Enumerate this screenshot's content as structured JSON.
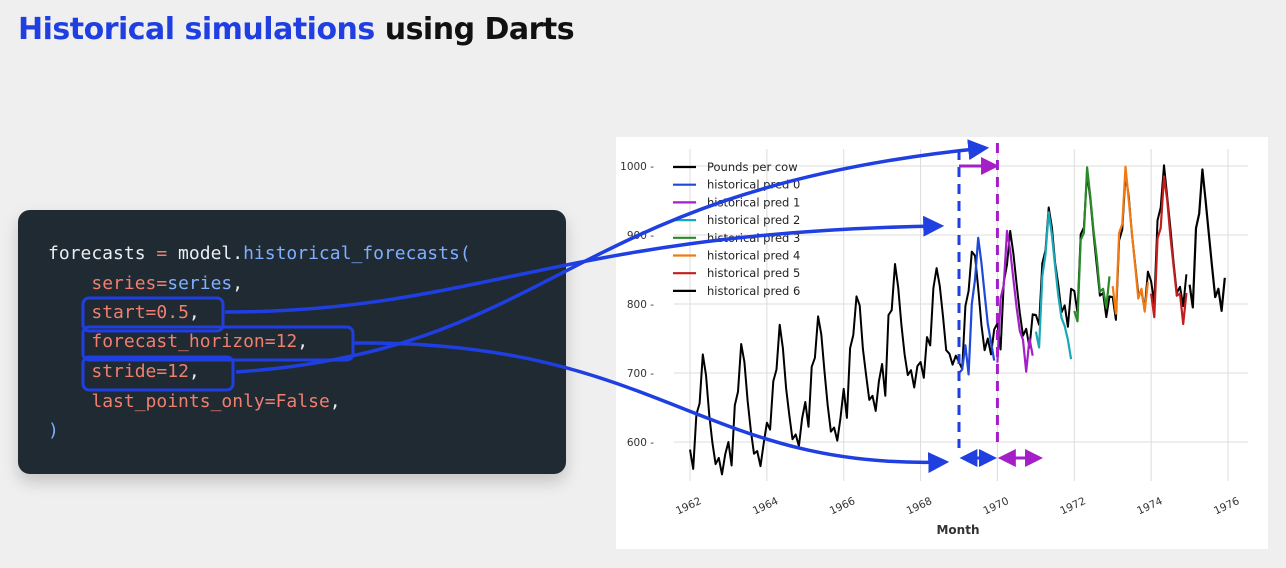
{
  "header": {
    "title_highlight": "Historical simulations",
    "title_rest": " using Darts"
  },
  "code": {
    "lines": [
      [
        [
          "forecasts ",
          "var"
        ],
        [
          "=",
          "op"
        ],
        [
          " model.",
          "var"
        ],
        [
          "historical_forecasts",
          "fn"
        ],
        [
          "(",
          "paren"
        ]
      ],
      [
        [
          "    ",
          "var"
        ],
        [
          "series",
          "kw"
        ],
        [
          "=",
          "op"
        ],
        [
          "series",
          "fn"
        ],
        [
          ",",
          "var"
        ]
      ],
      [
        [
          "    ",
          "var"
        ],
        [
          "start",
          "kw"
        ],
        [
          "=",
          "op"
        ],
        [
          "0.5",
          "num"
        ],
        [
          ",",
          "var"
        ]
      ],
      [
        [
          "    ",
          "var"
        ],
        [
          "forecast_horizon",
          "kw"
        ],
        [
          "=",
          "op"
        ],
        [
          "12",
          "num"
        ],
        [
          ",",
          "var"
        ]
      ],
      [
        [
          "    ",
          "var"
        ],
        [
          "stride",
          "kw"
        ],
        [
          "=",
          "op"
        ],
        [
          "12",
          "num"
        ],
        [
          ",",
          "var"
        ]
      ],
      [
        [
          "    ",
          "var"
        ],
        [
          "last_points_only",
          "kw"
        ],
        [
          "=",
          "op"
        ],
        [
          "False",
          "num"
        ],
        [
          ",",
          "var"
        ]
      ],
      [
        [
          ")",
          "paren"
        ]
      ]
    ]
  },
  "chart_data": {
    "type": "line",
    "xlabel": "Month",
    "x_ticks": [
      "1962",
      "1964",
      "1966",
      "1968",
      "1970",
      "1972",
      "1974",
      "1976"
    ],
    "y_ticks": [
      600,
      700,
      800,
      900,
      1000
    ],
    "xlim": [
      1962.0,
      1976.0
    ],
    "ylim": [
      560,
      1010
    ],
    "grid": true,
    "legend_position": "top-left",
    "series": [
      {
        "name": "Pounds per cow",
        "color": "#000000",
        "x_start": 1962.0,
        "step": 0.0833333,
        "values": [
          589,
          561,
          640,
          656,
          727,
          697,
          640,
          599,
          568,
          577,
          553,
          582,
          600,
          566,
          653,
          673,
          742,
          716,
          660,
          617,
          583,
          587,
          565,
          598,
          628,
          618,
          688,
          705,
          770,
          736,
          678,
          639,
          604,
          611,
          594,
          634,
          658,
          622,
          709,
          722,
          782,
          756,
          702,
          653,
          615,
          621,
          602,
          635,
          677,
          635,
          736,
          755,
          811,
          798,
          735,
          697,
          661,
          667,
          645,
          688,
          713,
          667,
          784,
          791,
          858,
          824,
          770,
          727,
          697,
          704,
          679,
          710,
          716,
          693,
          752,
          740,
          823,
          852,
          826,
          782,
          733,
          728,
          712,
          725,
          716,
          706,
          797,
          819,
          876,
          870,
          823,
          770,
          733,
          750,
          727,
          763,
          772,
          734,
          832,
          857,
          906,
          873,
          829,
          787,
          754,
          764,
          737,
          785,
          784,
          770,
          859,
          878,
          940,
          911,
          860,
          828,
          788,
          798,
          767,
          822,
          819,
          787,
          901,
          911,
          990,
          952,
          902,
          857,
          812,
          816,
          781,
          811,
          810,
          777,
          892,
          908,
          988,
          957,
          902,
          859,
          815,
          818,
          792,
          847,
          833,
          801,
          921,
          940,
          1001,
          956,
          910,
          860,
          816,
          825,
          797,
          843
        ]
      },
      {
        "name": "historical pred 0",
        "color": "#1f49d6",
        "x_start": 1969.0,
        "step": 0.0833333,
        "values": [
          700,
          705,
          740,
          698,
          800,
          835,
          896,
          860,
          815,
          771,
          745,
          718
        ]
      },
      {
        "name": "historical pred 1",
        "color": "#a41fc7",
        "x_start": 1970.0,
        "step": 0.0833333,
        "values": [
          715,
          808,
          828,
          906,
          878,
          836,
          795,
          761,
          748,
          702,
          750,
          725
        ]
      },
      {
        "name": "historical pred 2",
        "color": "#1aa8b8",
        "x_start": 1971.0,
        "step": 0.0833333,
        "values": [
          760,
          737,
          840,
          872,
          933,
          900,
          855,
          812,
          780,
          768,
          748,
          720
        ]
      },
      {
        "name": "historical pred 3",
        "color": "#2a8a2a",
        "x_start": 1972.0,
        "step": 0.0833333,
        "values": [
          790,
          775,
          893,
          903,
          998,
          956,
          907,
          868,
          818,
          822,
          795,
          840
        ]
      },
      {
        "name": "historical pred 4",
        "color": "#f17a12",
        "x_start": 1973.0,
        "step": 0.0833333,
        "values": [
          826,
          786,
          903,
          916,
          999,
          951,
          903,
          856,
          808,
          822,
          789,
          832
        ]
      },
      {
        "name": "historical pred 5",
        "color": "#c21e1e",
        "x_start": 1974.0,
        "step": 0.0833333,
        "values": [
          815,
          781,
          895,
          910,
          985,
          951,
          898,
          855,
          812,
          815,
          771,
          816
        ]
      },
      {
        "name": "historical pred 6",
        "color": "#000000",
        "x_start": 1975.0,
        "step": 0.0833333,
        "values": [
          828,
          795,
          910,
          931,
          995,
          950,
          902,
          855,
          810,
          822,
          790,
          838
        ]
      }
    ],
    "markers": {
      "start_line_x": 1969.0,
      "horizon_line_x": 1970.0,
      "start_color": "#1f3fe0",
      "horizon_color": "#a41fc7"
    }
  },
  "colors": {
    "accent": "#1f3fe0",
    "code_bg": "#1f2a33",
    "arrow": "#1f3fe0",
    "horizon": "#a41fc7"
  }
}
